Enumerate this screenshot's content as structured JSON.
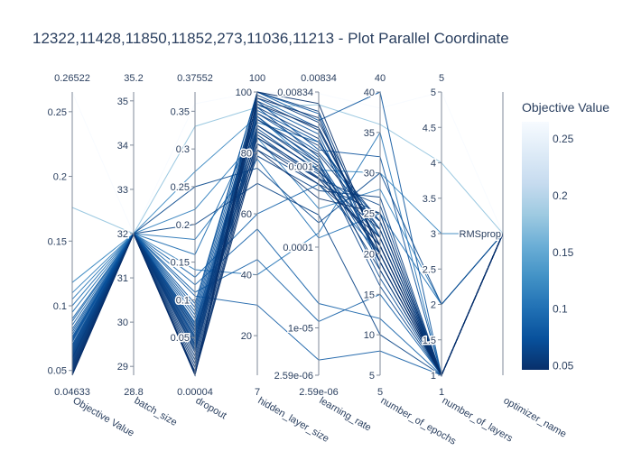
{
  "title": "12322,11428,11850,11852,273,11036,11213 - Plot Parallel Coordinate",
  "chart_data": {
    "type": "parallel_coordinates",
    "colorbar": {
      "title": "Objective Value",
      "range": [
        0.04633,
        0.26522
      ],
      "ticks": [
        "0.25",
        "0.2",
        "0.15",
        "0.1",
        "0.05"
      ],
      "tick_values": [
        0.25,
        0.2,
        0.15,
        0.1,
        0.05
      ],
      "colorscale": [
        "#08306b",
        "#08519c",
        "#2171b5",
        "#4292c6",
        "#6baed6",
        "#9ecae1",
        "#c6dbef",
        "#deebf7",
        "#f7fbff"
      ]
    },
    "dimensions": [
      {
        "label": "Objective Value",
        "range_min": "0.04633",
        "range_max": "0.26522",
        "min": 0.04633,
        "max": 0.26522,
        "ticks": [
          {
            "v": 0.05,
            "t": "0.05"
          },
          {
            "v": 0.1,
            "t": "0.1"
          },
          {
            "v": 0.15,
            "t": "0.15"
          },
          {
            "v": 0.2,
            "t": "0.2"
          },
          {
            "v": 0.25,
            "t": "0.25"
          }
        ]
      },
      {
        "label": "batch_size",
        "range_min": "28.8",
        "range_max": "35.2",
        "min": 28.8,
        "max": 35.2,
        "ticks": [
          {
            "v": 29,
            "t": "29"
          },
          {
            "v": 30,
            "t": "30"
          },
          {
            "v": 31,
            "t": "31"
          },
          {
            "v": 32,
            "t": "32"
          },
          {
            "v": 33,
            "t": "33"
          },
          {
            "v": 34,
            "t": "34"
          },
          {
            "v": 35,
            "t": "35"
          }
        ]
      },
      {
        "label": "dropout",
        "range_min": "0.00004",
        "range_max": "0.37552",
        "min": 4e-05,
        "max": 0.37552,
        "ticks": [
          {
            "v": 0.05,
            "t": "0.05"
          },
          {
            "v": 0.1,
            "t": "0.1"
          },
          {
            "v": 0.15,
            "t": "0.15"
          },
          {
            "v": 0.2,
            "t": "0.2"
          },
          {
            "v": 0.25,
            "t": "0.25"
          },
          {
            "v": 0.3,
            "t": "0.3"
          },
          {
            "v": 0.35,
            "t": "0.35"
          }
        ]
      },
      {
        "label": "hidden_layer_size",
        "range_min": "7",
        "range_max": "100",
        "min": 7,
        "max": 100,
        "ticks": [
          {
            "v": 20,
            "t": "20"
          },
          {
            "v": 40,
            "t": "40"
          },
          {
            "v": 60,
            "t": "60"
          },
          {
            "v": 80,
            "t": "80"
          },
          {
            "v": 100,
            "t": "100"
          }
        ]
      },
      {
        "label": "learning_rate",
        "range_min": "2.59e-06",
        "range_max": "0.00834",
        "min": 2.59e-06,
        "max": 0.00834,
        "log": true,
        "ticks": [
          {
            "v": 2.59e-06,
            "t": "2.59e-06"
          },
          {
            "v": 1e-05,
            "t": "1e-05"
          },
          {
            "v": 0.0001,
            "t": "0.0001"
          },
          {
            "v": 0.001,
            "t": "0.001"
          },
          {
            "v": 0.00834,
            "t": "0.00834"
          }
        ]
      },
      {
        "label": "number_of_epochs",
        "range_min": "5",
        "range_max": "40",
        "min": 5,
        "max": 40,
        "ticks": [
          {
            "v": 5,
            "t": "5"
          },
          {
            "v": 10,
            "t": "10"
          },
          {
            "v": 15,
            "t": "15"
          },
          {
            "v": 20,
            "t": "20"
          },
          {
            "v": 25,
            "t": "25"
          },
          {
            "v": 30,
            "t": "30"
          },
          {
            "v": 35,
            "t": "35"
          },
          {
            "v": 40,
            "t": "40"
          }
        ]
      },
      {
        "label": "number_of_layers",
        "range_min": "1",
        "range_max": "5",
        "min": 1,
        "max": 5,
        "ticks": [
          {
            "v": 1,
            "t": "1"
          },
          {
            "v": 1.5,
            "t": "1.5"
          },
          {
            "v": 2,
            "t": "2"
          },
          {
            "v": 2.5,
            "t": "2.5"
          },
          {
            "v": 3,
            "t": "3"
          },
          {
            "v": 3.5,
            "t": "3.5"
          },
          {
            "v": 4,
            "t": "4"
          },
          {
            "v": 4.5,
            "t": "4.5"
          },
          {
            "v": 5,
            "t": "5"
          }
        ]
      },
      {
        "label": "optimizer_name",
        "range_min": "",
        "range_max": "",
        "min": 0,
        "max": 1,
        "categorical": true,
        "ticks": [
          {
            "v": 0.5,
            "t": "RMSprop"
          }
        ]
      }
    ],
    "trials": [
      [
        0.265,
        32,
        0.36,
        100,
        0.008,
        38,
        5,
        0.5
      ],
      [
        0.176,
        32,
        0.33,
        95,
        0.0058,
        36,
        4,
        0.5
      ],
      [
        0.118,
        32,
        0.27,
        92,
        0.0009,
        30,
        3,
        0.5
      ],
      [
        0.11,
        32,
        0.22,
        85,
        0.0003,
        28,
        2,
        0.5
      ],
      [
        0.1,
        32,
        0.18,
        78,
        0.00013,
        25,
        2,
        0.5
      ],
      [
        0.095,
        32,
        0.16,
        90,
        0.002,
        22,
        1,
        0.5
      ],
      [
        0.09,
        32,
        0.13,
        60,
        0.0006,
        20,
        1,
        0.5
      ],
      [
        0.088,
        32,
        0.12,
        55,
        2e-05,
        12,
        1,
        0.5
      ],
      [
        0.085,
        32,
        0.11,
        45,
        1.2e-05,
        15,
        1,
        0.5
      ],
      [
        0.082,
        32,
        0.105,
        30,
        4e-06,
        8,
        1,
        0.5
      ],
      [
        0.08,
        32,
        0.09,
        100,
        0.0045,
        18,
        1,
        0.5
      ],
      [
        0.078,
        32,
        0.085,
        98,
        0.003,
        21,
        1,
        0.5
      ],
      [
        0.076,
        32,
        0.08,
        96,
        0.0025,
        19,
        1,
        0.5
      ],
      [
        0.074,
        32,
        0.075,
        94,
        0.002,
        23,
        1,
        0.5
      ],
      [
        0.072,
        32,
        0.07,
        93,
        0.0015,
        24,
        1,
        0.5
      ],
      [
        0.07,
        32,
        0.068,
        91,
        0.0012,
        20,
        1,
        0.5
      ],
      [
        0.068,
        32,
        0.065,
        89,
        0.0011,
        19,
        1,
        0.5
      ],
      [
        0.066,
        32,
        0.063,
        87,
        0.0009,
        22,
        1,
        0.5
      ],
      [
        0.064,
        32,
        0.06,
        85,
        0.0008,
        21,
        1,
        0.5
      ],
      [
        0.062,
        32,
        0.058,
        83,
        0.0007,
        26,
        1,
        0.5
      ],
      [
        0.06,
        32,
        0.055,
        81,
        0.0006,
        25,
        1,
        0.5
      ],
      [
        0.059,
        32,
        0.05,
        79,
        0.0005,
        27,
        1,
        0.5
      ],
      [
        0.058,
        32,
        0.045,
        100,
        0.0048,
        20,
        1,
        0.5
      ],
      [
        0.057,
        32,
        0.04,
        99,
        0.0035,
        22,
        1,
        0.5
      ],
      [
        0.056,
        32,
        0.035,
        97,
        0.0028,
        21,
        1,
        0.5
      ],
      [
        0.055,
        32,
        0.03,
        95,
        0.0022,
        19,
        1,
        0.5
      ],
      [
        0.054,
        32,
        0.025,
        93,
        0.0018,
        24,
        1,
        0.5
      ],
      [
        0.053,
        32,
        0.02,
        91,
        0.0014,
        23,
        1,
        0.5
      ],
      [
        0.052,
        32,
        0.015,
        89,
        0.001,
        20,
        1,
        0.5
      ],
      [
        0.051,
        32,
        0.01,
        87,
        0.0009,
        18,
        1,
        0.5
      ],
      [
        0.05,
        32,
        0.005,
        85,
        0.0007,
        21,
        1,
        0.5
      ],
      [
        0.049,
        32,
        0.003,
        83,
        0.0006,
        22,
        1,
        0.5
      ],
      [
        0.048,
        32,
        0.002,
        81,
        0.0004,
        25,
        1,
        0.5
      ],
      [
        0.047,
        32,
        0.001,
        100,
        0.006,
        20,
        1,
        0.5
      ],
      [
        0.0465,
        32,
        0.0005,
        98,
        0.004,
        19,
        1,
        0.5
      ],
      [
        0.04633,
        32,
        4e-05,
        96,
        0.003,
        21,
        1,
        0.5
      ],
      [
        0.061,
        32,
        0.2,
        70,
        0.00025,
        10,
        1,
        0.5
      ],
      [
        0.065,
        32,
        0.25,
        75,
        0.0002,
        30,
        2,
        0.5
      ],
      [
        0.105,
        32,
        0.14,
        40,
        0.00015,
        35,
        1,
        0.5
      ],
      [
        0.073,
        32,
        0.052,
        97,
        0.0016,
        32,
        1,
        0.5
      ],
      [
        0.069,
        32,
        0.048,
        95,
        0.0013,
        17,
        1,
        0.5
      ],
      [
        0.063,
        32,
        0.042,
        92,
        0.0011,
        16,
        1,
        0.5
      ],
      [
        0.075,
        32,
        0.095,
        100,
        0.0037,
        40,
        1,
        0.5
      ],
      [
        0.067,
        32,
        0.038,
        88,
        0.00085,
        24,
        1,
        0.5
      ],
      [
        0.0595,
        32,
        0.033,
        86,
        0.00072,
        23,
        1,
        0.5
      ]
    ]
  }
}
